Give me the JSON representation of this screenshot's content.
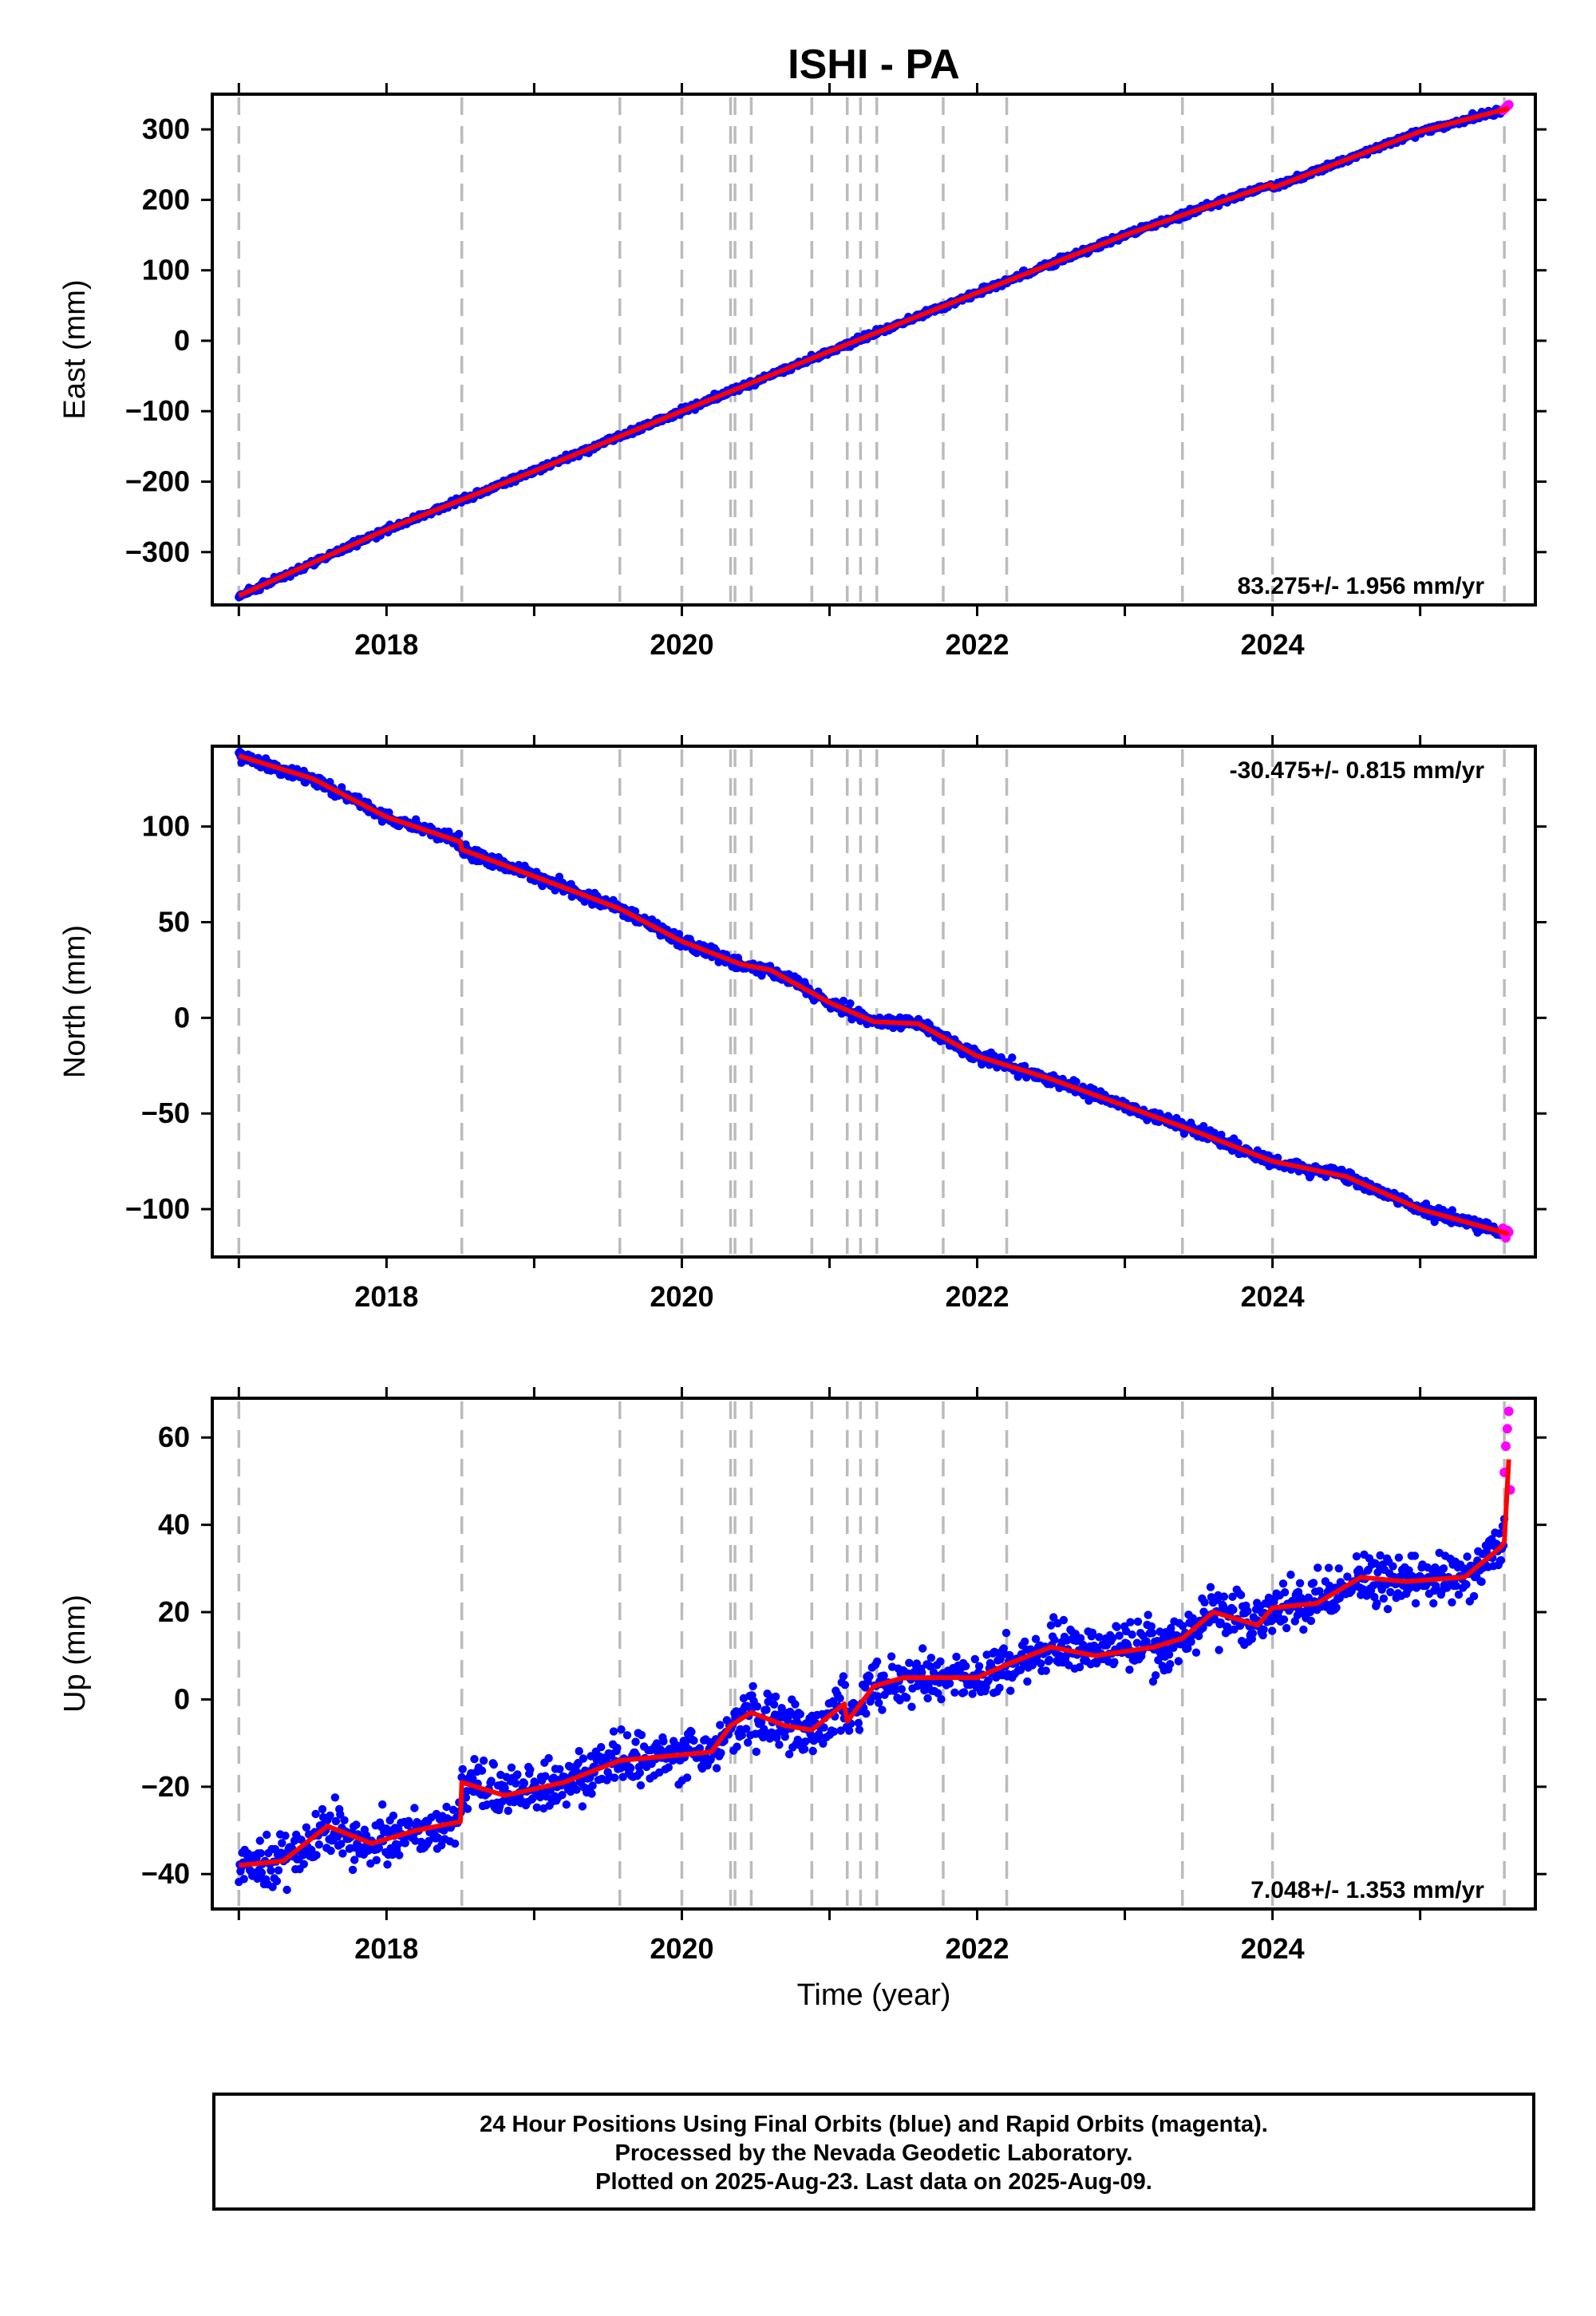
{
  "title": "ISHI - PA",
  "xlabel": "Time (year)",
  "footer": {
    "line1": "24 Hour Positions Using Final Orbits (blue) and Rapid Orbits (magenta).",
    "line2": "Processed by the Nevada Geodetic Laboratory.",
    "line3": "Plotted on 2025-Aug-23. Last data on 2025-Aug-09."
  },
  "colors": {
    "final": "#0000ff",
    "rapid": "#ff00ff",
    "fit": "#ff0000",
    "events": "#bbbbbb"
  },
  "events": [
    2017.0,
    2018.51,
    2019.58,
    2020.0,
    2020.33,
    2020.36,
    2020.47,
    2020.88,
    2021.12,
    2021.21,
    2021.32,
    2021.77,
    2022.2,
    2023.39,
    2024.0,
    2025.57
  ],
  "chart_data": [
    {
      "type": "scatter",
      "ylabel": "East (mm)",
      "xlim": [
        2016.82,
        2025.78
      ],
      "ylim": [
        -375,
        350
      ],
      "xticks": [
        2018,
        2020,
        2022,
        2024
      ],
      "xticklabels": [
        "2018",
        "2020",
        "2022",
        "2024"
      ],
      "yticks": [
        -300,
        -200,
        -100,
        0,
        100,
        200,
        300
      ],
      "yticklabels": [
        "−300",
        "−200",
        "−100",
        "0",
        "100",
        "200",
        "300"
      ],
      "rate_label": "83.275+/- 1.956 mm/yr",
      "rate_position": "bottom-right",
      "fit": {
        "x": [
          2017.0,
          2018.0,
          2019.0,
          2020.0,
          2021.0,
          2022.0,
          2023.0,
          2023.99,
          2024.0,
          2025.0,
          2025.6
        ],
        "y": [
          -362,
          -268,
          -185,
          -100,
          -15,
          68,
          150,
          222,
          217,
          297,
          330
        ]
      },
      "final_noise": 3,
      "rapid": {
        "x": [
          2025.56,
          2025.57,
          2025.58,
          2025.59,
          2025.6
        ],
        "y": [
          327,
          329,
          331,
          333,
          335
        ]
      }
    },
    {
      "type": "scatter",
      "ylabel": "North (mm)",
      "xlim": [
        2016.82,
        2025.78
      ],
      "ylim": [
        -125,
        142
      ],
      "xticks": [
        2018,
        2020,
        2022,
        2024
      ],
      "xticklabels": [
        "2018",
        "2020",
        "2022",
        "2024"
      ],
      "yticks": [
        -100,
        -50,
        0,
        50,
        100
      ],
      "yticklabels": [
        "−100",
        "−50",
        "0",
        "50",
        "100"
      ],
      "rate_label": "-30.475+/- 0.815 mm/yr",
      "rate_position": "top-right",
      "fit": {
        "x": [
          2017.0,
          2017.5,
          2018.0,
          2018.5,
          2018.51,
          2019.0,
          2019.58,
          2020.0,
          2020.4,
          2020.6,
          2021.0,
          2021.3,
          2021.6,
          2022.0,
          2022.5,
          2023.0,
          2023.5,
          2024.0,
          2024.5,
          2025.0,
          2025.6
        ],
        "y": [
          137,
          125,
          105,
          92,
          88,
          74,
          57,
          40,
          28,
          25,
          8,
          -2,
          -3,
          -20,
          -32,
          -46,
          -60,
          -75,
          -83,
          -100,
          -113
        ]
      },
      "final_noise": 2.2,
      "rapid": {
        "x": [
          2025.56,
          2025.57,
          2025.58,
          2025.59,
          2025.6
        ],
        "y": [
          -110,
          -113,
          -115,
          -111,
          -112
        ]
      }
    },
    {
      "type": "scatter",
      "ylabel": "Up (mm)",
      "xlim": [
        2016.82,
        2025.78
      ],
      "ylim": [
        -48,
        69
      ],
      "xticks": [
        2018,
        2020,
        2022,
        2024
      ],
      "xticklabels": [
        "2018",
        "2020",
        "2022",
        "2024"
      ],
      "yticks": [
        -40,
        -20,
        0,
        20,
        40,
        60
      ],
      "yticklabels": [
        "−40",
        "−20",
        "0",
        "20",
        "40",
        "60"
      ],
      "rate_label": "7.048+/- 1.353 mm/yr",
      "rate_position": "bottom-right",
      "fit": {
        "x": [
          2017.0,
          2017.3,
          2017.6,
          2017.9,
          2018.2,
          2018.5,
          2018.51,
          2018.8,
          2019.2,
          2019.58,
          2019.9,
          2020.2,
          2020.33,
          2020.47,
          2020.7,
          2020.88,
          2021.1,
          2021.12,
          2021.3,
          2021.5,
          2021.77,
          2022.0,
          2022.2,
          2022.5,
          2022.8,
          2023.2,
          2023.39,
          2023.6,
          2023.9,
          2024.0,
          2024.3,
          2024.6,
          2024.9,
          2025.3,
          2025.55,
          2025.57,
          2025.6
        ],
        "y": [
          -38,
          -37,
          -29,
          -33,
          -30,
          -28,
          -19,
          -22,
          -19,
          -14,
          -13,
          -12,
          -6,
          -3,
          -6,
          -7,
          -1,
          -5,
          3,
          5,
          5,
          5,
          8,
          12,
          10,
          12,
          14,
          20,
          17,
          21,
          22,
          28,
          27,
          28,
          35,
          36,
          55
        ]
      },
      "final_noise": 4,
      "rapid": {
        "x": [
          2025.57,
          2025.58,
          2025.59,
          2025.6,
          2025.61
        ],
        "y": [
          52,
          58,
          62,
          66,
          48
        ]
      }
    }
  ]
}
